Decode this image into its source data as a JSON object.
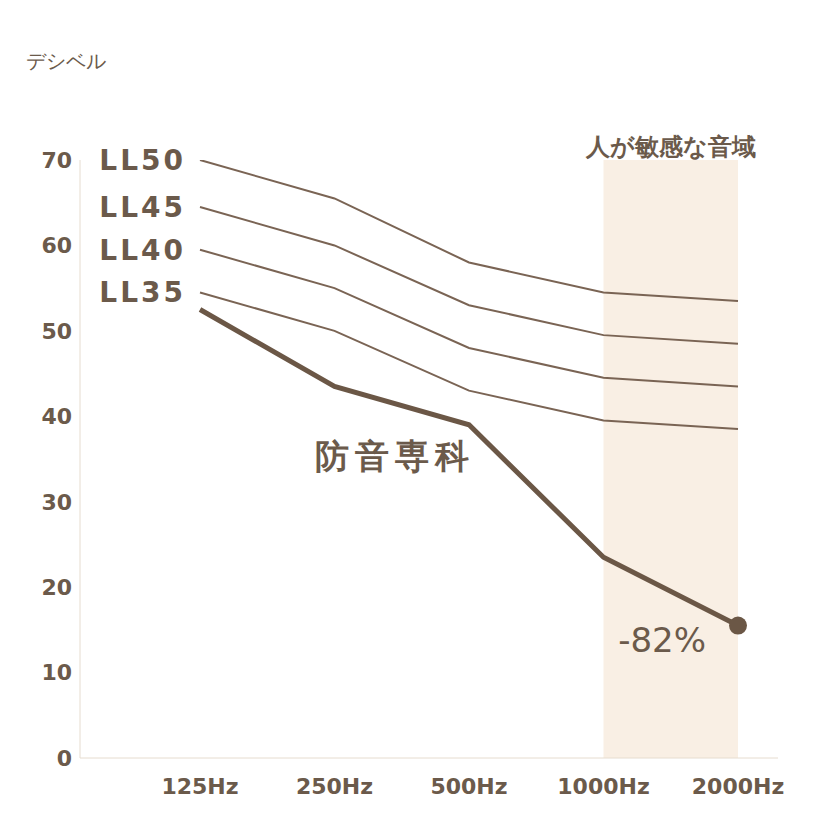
{
  "chart_data": {
    "type": "line",
    "y_label": "デシベル",
    "categories": [
      "125Hz",
      "250Hz",
      "500Hz",
      "1000Hz",
      "2000Hz"
    ],
    "ylim": [
      0,
      70
    ],
    "yticks": [
      0,
      10,
      20,
      30,
      40,
      50,
      60,
      70
    ],
    "grid": false,
    "series": [
      {
        "name": "LL50",
        "color": "#7a6454",
        "values": [
          70,
          65.5,
          58,
          54.5,
          53.5
        ]
      },
      {
        "name": "LL45",
        "color": "#7a6454",
        "values": [
          64.5,
          60,
          53,
          49.5,
          48.5
        ]
      },
      {
        "name": "LL40",
        "color": "#7a6454",
        "values": [
          59.5,
          55,
          48,
          44.5,
          43.5
        ]
      },
      {
        "name": "LL35",
        "color": "#7a6454",
        "values": [
          54.5,
          50,
          43,
          39.5,
          38.5
        ]
      },
      {
        "name": "防音専科",
        "color": "#6b5746",
        "values": [
          52.5,
          43.5,
          39,
          23.5,
          15.5
        ],
        "marker": "circle"
      }
    ],
    "highlight": {
      "label": "人が敏感な音域",
      "from": "1000Hz",
      "to": "2000Hz",
      "color": "#f9efe4"
    },
    "annotations": [
      {
        "text": "-82%",
        "series": "防音専科",
        "category": "2000Hz"
      }
    ]
  }
}
